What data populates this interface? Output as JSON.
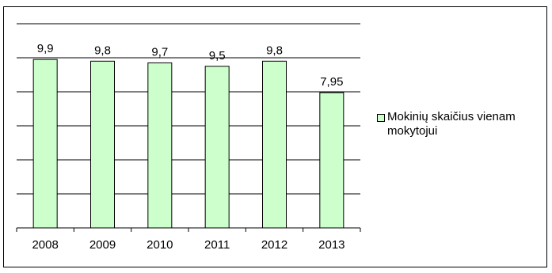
{
  "chart_data": {
    "type": "bar",
    "categories": [
      "2008",
      "2009",
      "2010",
      "2011",
      "2012",
      "2013"
    ],
    "series": [
      {
        "name": "Mokinių skaičius vienam mokytojui",
        "values": [
          9.9,
          9.8,
          9.7,
          9.5,
          9.8,
          7.95
        ],
        "labels": [
          "9,9",
          "9,8",
          "9,7",
          "9,5",
          "9,8",
          "7,95"
        ],
        "color": "#ccffcc"
      }
    ],
    "ylim": [
      0,
      12
    ],
    "y_gridlines": true,
    "legend_position": "right"
  }
}
